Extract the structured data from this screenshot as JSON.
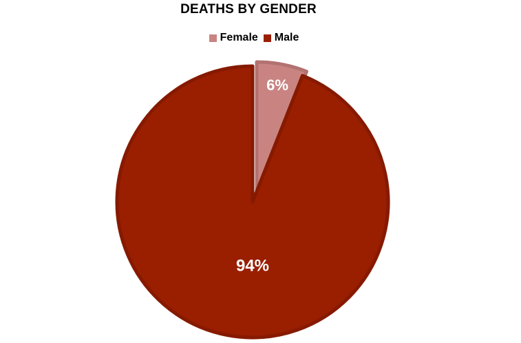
{
  "chart_data": {
    "type": "pie",
    "title": "DEATHS BY GENDER",
    "categories": [
      "Female",
      "Male"
    ],
    "values": [
      6,
      94
    ],
    "labels": [
      "6%",
      "94%"
    ],
    "colors": [
      "#c98482",
      "#9a1e00"
    ],
    "edge_colors": [
      "#b27270",
      "#861a00"
    ],
    "legend_position": "top"
  }
}
